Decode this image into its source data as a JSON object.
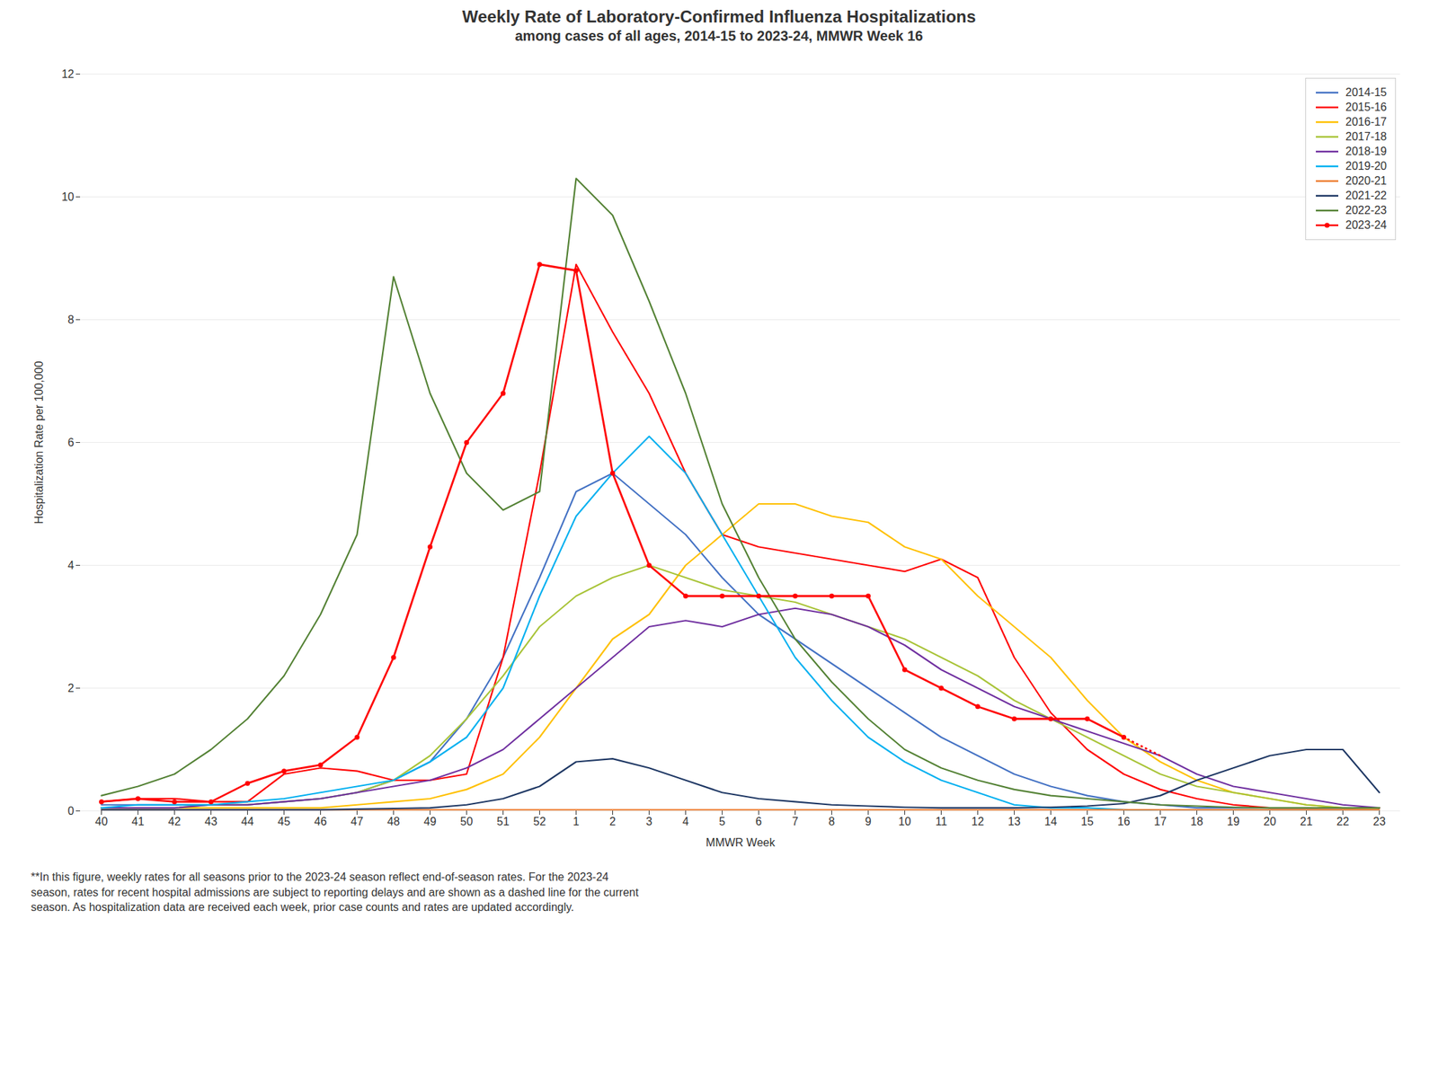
{
  "chart_data": {
    "type": "line",
    "title": "Weekly Rate of Laboratory-Confirmed Influenza Hospitalizations",
    "subtitle": "among cases of all ages, 2014-15 to 2023-24, MMWR Week 16",
    "caption": "**In this figure, weekly rates for all seasons prior to the 2023-24 season reflect end-of-season rates. For the 2023-24\nseason, rates for recent hospital admissions are subject to reporting delays and are shown as a dashed line for the current\nseason. As hospitalization data are received each week, prior case counts and rates are updated accordingly.",
    "xlabel": "MMWR Week",
    "ylabel": "Hospitalization Rate per 100,000",
    "categories": [
      "40",
      "41",
      "42",
      "43",
      "44",
      "45",
      "46",
      "47",
      "48",
      "49",
      "50",
      "51",
      "52",
      "1",
      "2",
      "3",
      "4",
      "5",
      "6",
      "7",
      "8",
      "9",
      "10",
      "11",
      "12",
      "13",
      "14",
      "15",
      "16",
      "17",
      "18",
      "19",
      "20",
      "21",
      "22",
      "23"
    ],
    "series": [
      {
        "name": "2014-15",
        "color": "#4472C4",
        "values": [
          0.1,
          0.1,
          0.1,
          0.1,
          0.1,
          0.15,
          0.2,
          0.3,
          0.5,
          0.8,
          1.5,
          2.5,
          3.8,
          5.2,
          5.5,
          5.0,
          4.5,
          3.8,
          3.2,
          2.8,
          2.4,
          2.0,
          1.6,
          1.2,
          0.9,
          0.6,
          0.4,
          0.25,
          0.15,
          0.1,
          0.05,
          0.05,
          0.05,
          0.05,
          0.05,
          0.05
        ]
      },
      {
        "name": "2015-16",
        "color": "#FF0000",
        "values": [
          0.15,
          0.2,
          0.2,
          0.15,
          0.15,
          0.6,
          0.7,
          0.65,
          0.5,
          0.5,
          0.6,
          2.5,
          5.5,
          8.9,
          7.8,
          6.8,
          5.5,
          4.5,
          4.3,
          4.2,
          4.1,
          4.0,
          3.9,
          4.1,
          3.8,
          2.5,
          1.6,
          1.0,
          0.6,
          0.35,
          0.2,
          0.1,
          0.05,
          0.05,
          0.05,
          0.05
        ]
      },
      {
        "name": "2016-17",
        "color": "#FFC000",
        "values": [
          0.05,
          0.05,
          0.05,
          0.05,
          0.05,
          0.05,
          0.05,
          0.1,
          0.15,
          0.2,
          0.35,
          0.6,
          1.2,
          2.0,
          2.8,
          3.2,
          4.0,
          4.5,
          5.0,
          5.0,
          4.8,
          4.7,
          4.3,
          4.1,
          3.5,
          3.0,
          2.5,
          1.8,
          1.2,
          0.8,
          0.5,
          0.3,
          0.2,
          0.1,
          0.05,
          0.05
        ]
      },
      {
        "name": "2017-18",
        "color": "#A9C439",
        "values": [
          0.05,
          0.05,
          0.05,
          0.1,
          0.1,
          0.15,
          0.2,
          0.3,
          0.5,
          0.9,
          1.5,
          2.2,
          3.0,
          3.5,
          3.8,
          4.0,
          3.8,
          3.6,
          3.5,
          3.4,
          3.2,
          3.0,
          2.8,
          2.5,
          2.2,
          1.8,
          1.5,
          1.2,
          0.9,
          0.6,
          0.4,
          0.3,
          0.2,
          0.1,
          0.05,
          0.05
        ]
      },
      {
        "name": "2018-19",
        "color": "#7030A0",
        "values": [
          0.05,
          0.05,
          0.05,
          0.1,
          0.1,
          0.15,
          0.2,
          0.3,
          0.4,
          0.5,
          0.7,
          1.0,
          1.5,
          2.0,
          2.5,
          3.0,
          3.1,
          3.0,
          3.2,
          3.3,
          3.2,
          3.0,
          2.7,
          2.3,
          2.0,
          1.7,
          1.5,
          1.3,
          1.1,
          0.9,
          0.6,
          0.4,
          0.3,
          0.2,
          0.1,
          0.05
        ]
      },
      {
        "name": "2019-20",
        "color": "#00B0F0",
        "values": [
          0.05,
          0.1,
          0.1,
          0.1,
          0.15,
          0.2,
          0.3,
          0.4,
          0.5,
          0.8,
          1.2,
          2.0,
          3.5,
          4.8,
          5.5,
          6.1,
          5.5,
          4.5,
          3.5,
          2.5,
          1.8,
          1.2,
          0.8,
          0.5,
          0.3,
          0.1,
          0.05,
          0.05,
          0.02,
          0.0,
          0.0,
          0.0,
          0.0,
          0.0,
          0.0,
          0.0
        ]
      },
      {
        "name": "2020-21",
        "color": "#ED7D31",
        "values": [
          0.02,
          0.02,
          0.02,
          0.02,
          0.02,
          0.02,
          0.02,
          0.02,
          0.02,
          0.02,
          0.02,
          0.02,
          0.02,
          0.02,
          0.02,
          0.02,
          0.02,
          0.02,
          0.02,
          0.02,
          0.02,
          0.02,
          0.02,
          0.02,
          0.02,
          0.02,
          0.02,
          0.02,
          0.02,
          0.02,
          0.02,
          0.02,
          0.02,
          0.02,
          0.02,
          0.02
        ]
      },
      {
        "name": "2021-22",
        "color": "#1F3864",
        "values": [
          0.02,
          0.02,
          0.02,
          0.02,
          0.02,
          0.02,
          0.02,
          0.03,
          0.04,
          0.05,
          0.1,
          0.2,
          0.4,
          0.8,
          0.85,
          0.7,
          0.5,
          0.3,
          0.2,
          0.15,
          0.1,
          0.08,
          0.06,
          0.05,
          0.05,
          0.05,
          0.06,
          0.08,
          0.12,
          0.25,
          0.5,
          0.7,
          0.9,
          1.0,
          1.0,
          0.3
        ]
      },
      {
        "name": "2022-23",
        "color": "#548235",
        "values": [
          0.25,
          0.4,
          0.6,
          1.0,
          1.5,
          2.2,
          3.2,
          4.5,
          8.7,
          6.8,
          5.5,
          4.9,
          5.2,
          10.3,
          9.7,
          8.3,
          6.8,
          5.0,
          3.8,
          2.8,
          2.1,
          1.5,
          1.0,
          0.7,
          0.5,
          0.35,
          0.25,
          0.2,
          0.15,
          0.1,
          0.08,
          0.06,
          0.05,
          0.05,
          0.05,
          0.05
        ]
      },
      {
        "name": "2023-24",
        "color": "#FF0000",
        "marker": "circle",
        "line_style": "solid",
        "values": [
          0.15,
          0.2,
          0.15,
          0.15,
          0.45,
          0.65,
          0.75,
          1.2,
          2.5,
          4.3,
          6.0,
          6.8,
          8.9,
          8.8,
          5.5,
          4.0,
          3.5,
          3.5,
          3.5,
          3.5,
          3.5,
          3.5,
          2.3,
          2.0,
          1.7,
          1.5,
          1.5,
          1.5,
          1.2,
          null,
          null,
          null,
          null,
          null,
          null,
          null
        ]
      },
      {
        "name": "2023-24",
        "color": "#FF0000",
        "line_style": "dotted",
        "values": [
          null,
          null,
          null,
          null,
          null,
          null,
          null,
          null,
          null,
          null,
          null,
          null,
          null,
          null,
          null,
          null,
          null,
          null,
          null,
          null,
          null,
          null,
          null,
          null,
          null,
          null,
          null,
          null,
          1.2,
          0.9,
          null,
          null,
          null,
          null,
          null,
          null
        ]
      }
    ],
    "ylim": [
      0,
      12
    ],
    "yticks": [
      0,
      2,
      4,
      6,
      8,
      10,
      12
    ],
    "grid": true,
    "legend": "upper right"
  }
}
